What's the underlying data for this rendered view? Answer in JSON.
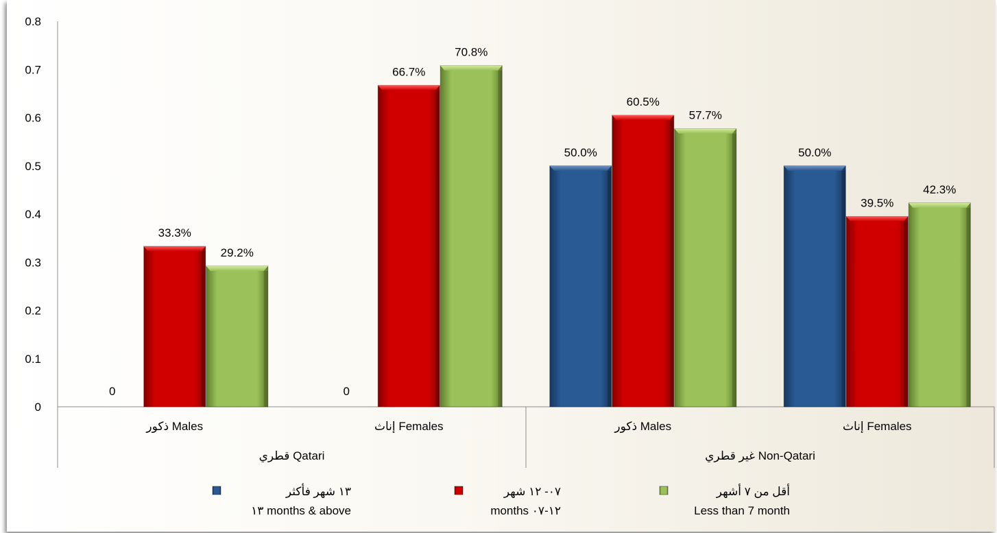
{
  "chart_data": {
    "type": "bar",
    "title": "",
    "xlabel": "",
    "ylabel": "",
    "ylim": [
      0,
      0.8
    ],
    "yticks": [
      "0",
      "0.1",
      "0.2",
      "0.3",
      "0.4",
      "0.5",
      "0.6",
      "0.7",
      "0.8"
    ],
    "grid": false,
    "legend_position": "bottom",
    "groups": [
      {
        "label": "قطري Qatari",
        "categories": [
          "ذكور Males",
          "إناث Females"
        ]
      },
      {
        "label": "غير قطري Non-Qatari",
        "categories": [
          "ذكور Males",
          "إناث Females"
        ]
      }
    ],
    "categories": [
      "ذكور Males",
      "إناث Females",
      "ذكور Males",
      "إناث Females"
    ],
    "series": [
      {
        "name_ar": "١٣ شهر فأكثر",
        "name_en": "١٣ months & above",
        "color": "#254f82",
        "values": [
          0,
          0,
          0.5,
          0.5
        ],
        "labels": [
          "0",
          "0",
          "50.0%",
          "50.0%"
        ]
      },
      {
        "name_ar": "٠٧- ١٢ شهر",
        "name_en": "months ١٢-٠٧",
        "color": "#c00000",
        "values": [
          0.333,
          0.667,
          0.605,
          0.395
        ],
        "labels": [
          "33.3%",
          "66.7%",
          "60.5%",
          "39.5%"
        ]
      },
      {
        "name_ar": "أقل من ٧ أشهر",
        "name_en": "Less than 7 month",
        "color": "#8fb54b",
        "values": [
          0.292,
          0.708,
          0.577,
          0.423
        ],
        "labels": [
          "29.2%",
          "70.8%",
          "57.7%",
          "42.3%"
        ]
      }
    ]
  }
}
